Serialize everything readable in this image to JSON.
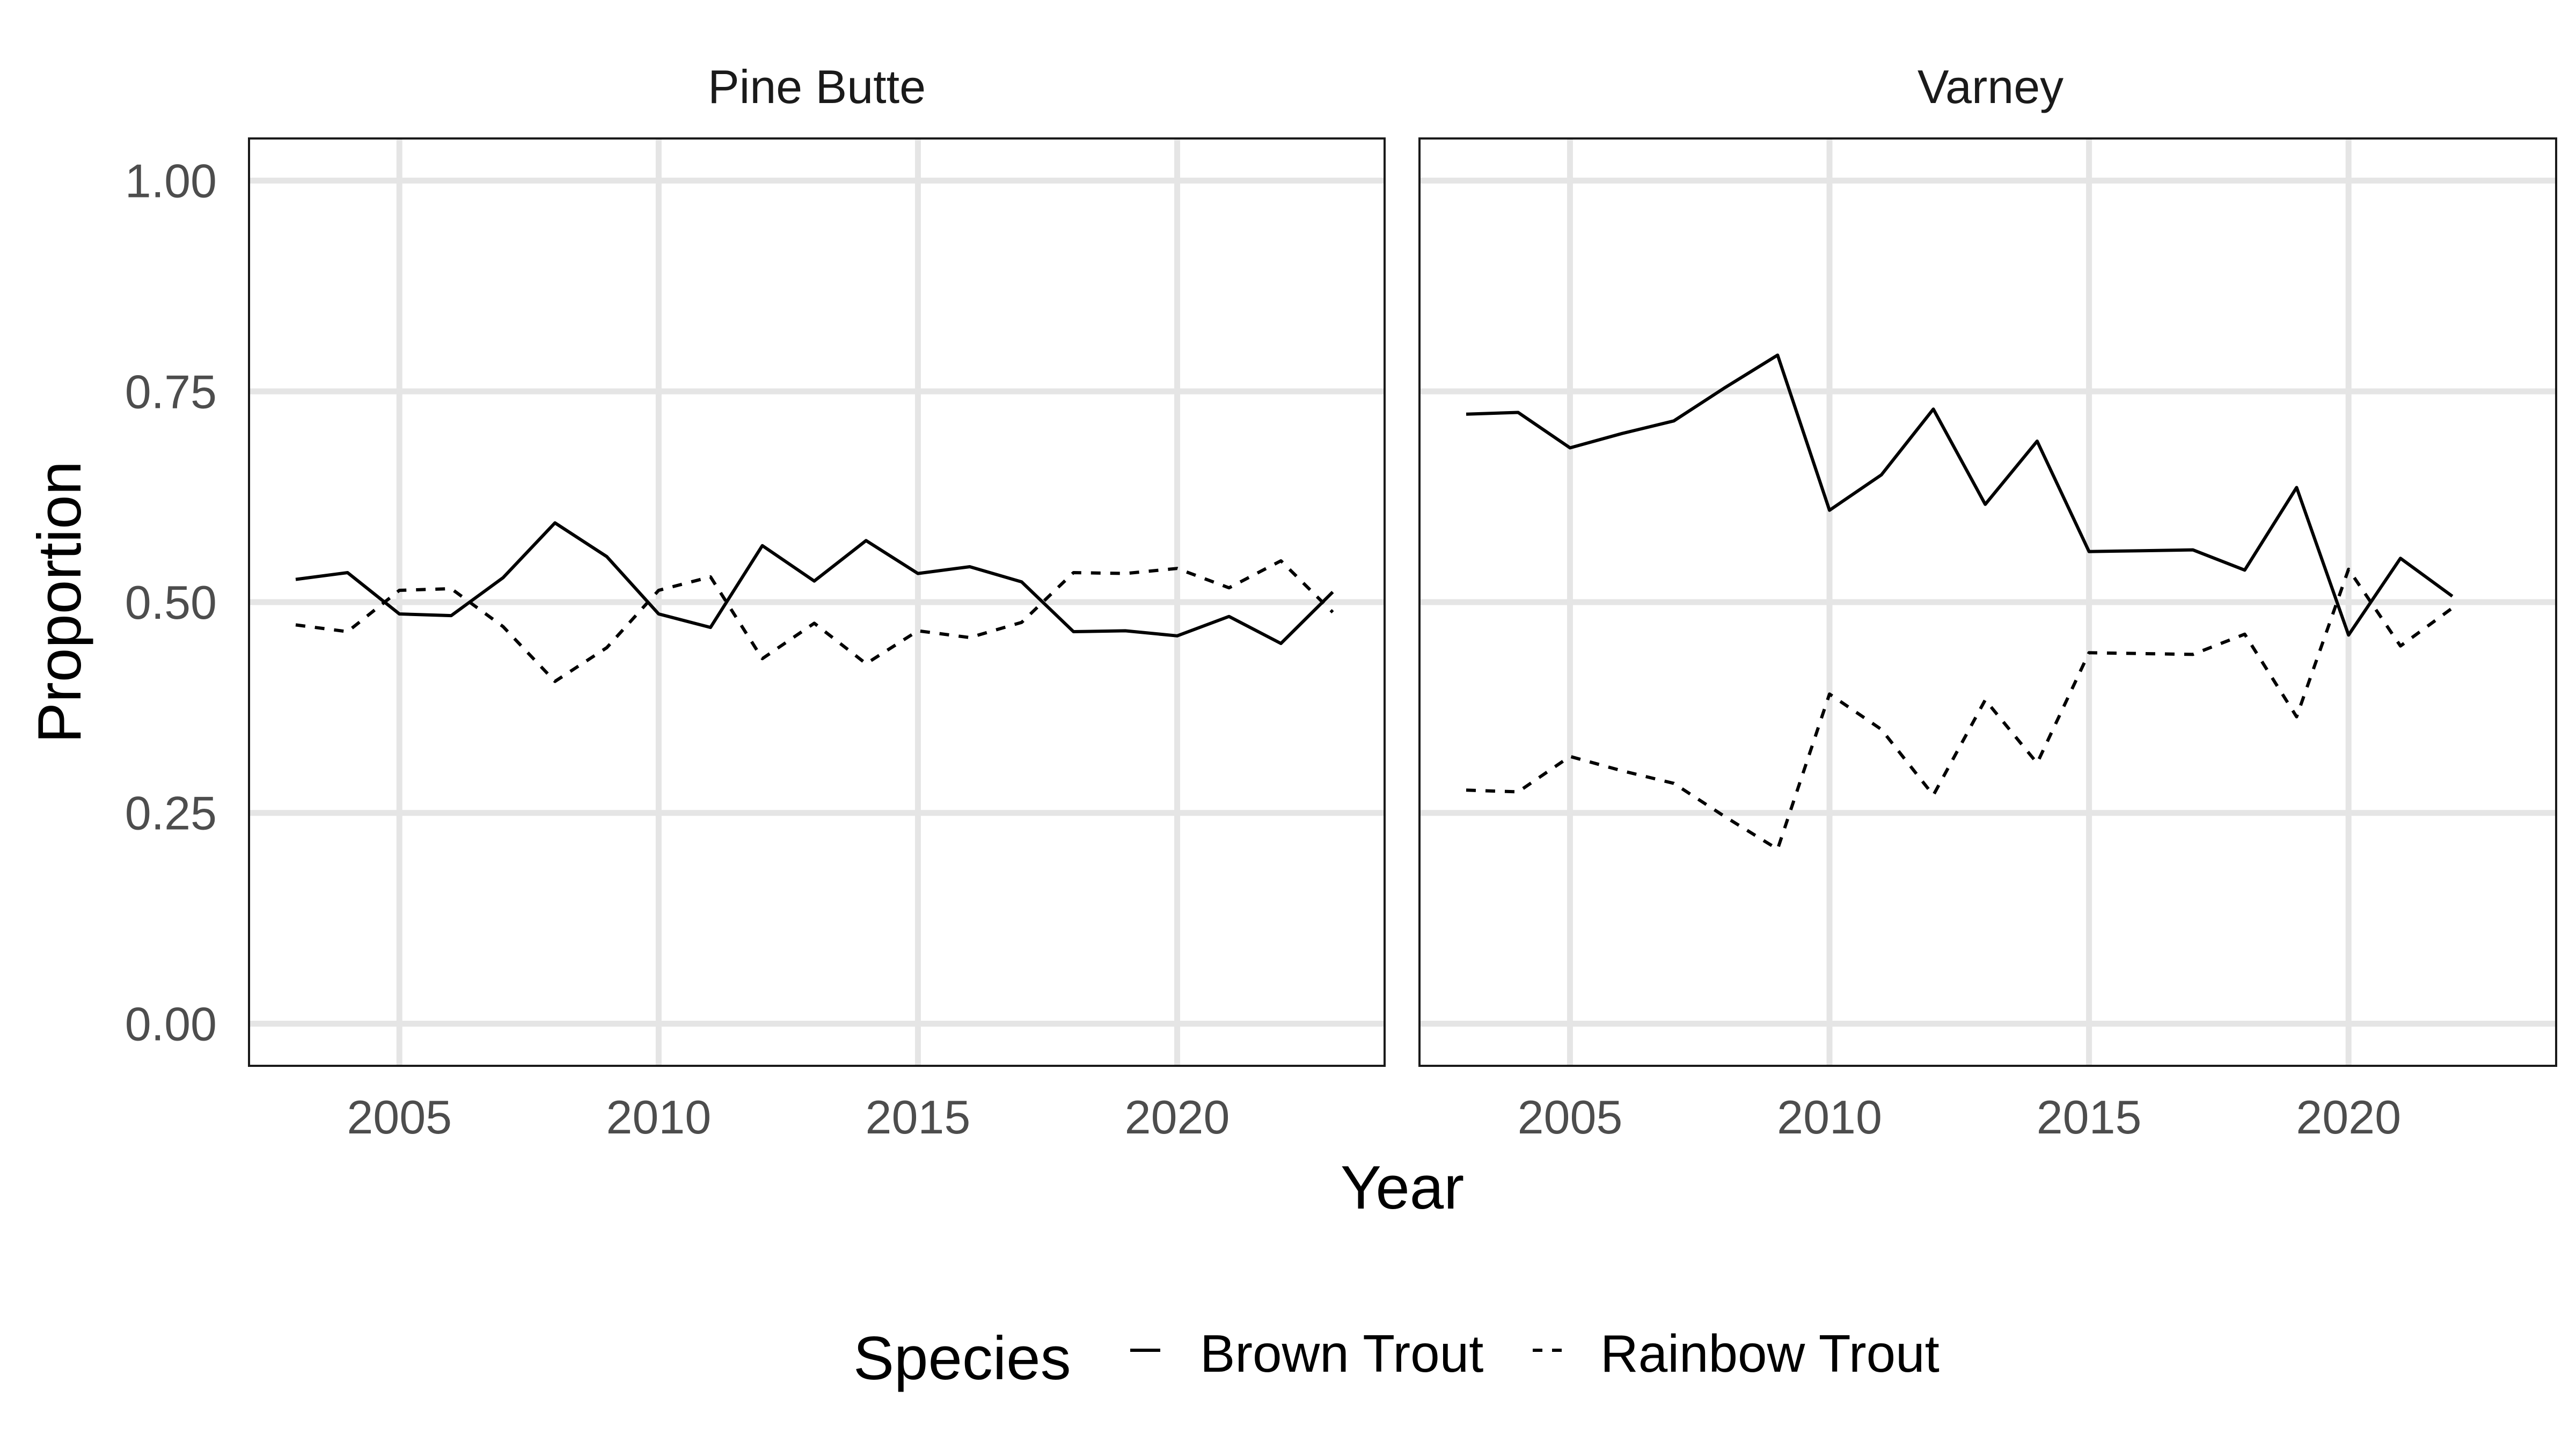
{
  "chart_data": {
    "type": "line",
    "facets": [
      "Pine Butte",
      "Varney"
    ],
    "xlabel": "Year",
    "ylabel": "Proportion",
    "xlim": [
      2002.1,
      2024.0
    ],
    "ylim": [
      -0.05,
      1.05
    ],
    "xticks": [
      2005,
      2010,
      2015,
      2020
    ],
    "xtick_labels": [
      "2005",
      "2010",
      "2015",
      "2020"
    ],
    "yticks": [
      0.0,
      0.25,
      0.5,
      0.75,
      1.0
    ],
    "ytick_labels": [
      "0.00",
      "0.25",
      "0.50",
      "0.75",
      "1.00"
    ],
    "grid": true,
    "legend": {
      "title": "Species",
      "placement": "bottom",
      "entries": [
        {
          "label": "Brown Trout",
          "linetype": "solid"
        },
        {
          "label": "Rainbow Trout",
          "linetype": "dashed"
        }
      ]
    },
    "panels": [
      {
        "title": "Pine Butte",
        "series": [
          {
            "name": "Brown Trout",
            "linetype": "solid",
            "x": [
              2003,
              2004,
              2005,
              2006,
              2007,
              2008,
              2009,
              2010,
              2011,
              2012,
              2013,
              2014,
              2015,
              2016,
              2017,
              2018,
              2019,
              2020,
              2021,
              2022,
              2023
            ],
            "y": [
              0.527,
              0.535,
              0.486,
              0.484,
              0.529,
              0.594,
              0.554,
              0.486,
              0.47,
              0.567,
              0.525,
              0.573,
              0.534,
              0.542,
              0.524,
              0.465,
              0.466,
              0.46,
              0.483,
              0.451,
              0.512
            ]
          },
          {
            "name": "Rainbow Trout",
            "linetype": "dashed",
            "x": [
              2003,
              2004,
              2005,
              2006,
              2007,
              2008,
              2009,
              2010,
              2011,
              2012,
              2013,
              2014,
              2015,
              2016,
              2017,
              2018,
              2019,
              2020,
              2021,
              2022,
              2023
            ],
            "y": [
              0.473,
              0.465,
              0.514,
              0.516,
              0.471,
              0.406,
              0.446,
              0.514,
              0.53,
              0.433,
              0.475,
              0.427,
              0.466,
              0.458,
              0.476,
              0.535,
              0.534,
              0.54,
              0.517,
              0.549,
              0.488
            ]
          }
        ]
      },
      {
        "title": "Varney",
        "series": [
          {
            "name": "Brown Trout",
            "linetype": "solid",
            "x": [
              2003,
              2004,
              2005,
              2006,
              2007,
              2008,
              2009,
              2010,
              2011,
              2012,
              2013,
              2014,
              2015,
              2016,
              2017,
              2018,
              2019,
              2020,
              2021,
              2022
            ],
            "y": [
              0.723,
              0.725,
              0.683,
              0.7,
              0.715,
              0.755,
              0.793,
              0.609,
              0.651,
              0.729,
              0.616,
              0.691,
              0.56,
              0.561,
              0.562,
              0.538,
              0.636,
              0.461,
              0.552,
              0.507
            ]
          },
          {
            "name": "Rainbow Trout",
            "linetype": "dashed",
            "x": [
              2003,
              2004,
              2005,
              2006,
              2007,
              2008,
              2009,
              2010,
              2011,
              2012,
              2013,
              2014,
              2015,
              2016,
              2017,
              2018,
              2019,
              2020,
              2021,
              2022
            ],
            "y": [
              0.277,
              0.275,
              0.317,
              0.3,
              0.285,
              0.245,
              0.207,
              0.391,
              0.349,
              0.271,
              0.384,
              0.309,
              0.44,
              0.439,
              0.438,
              0.462,
              0.364,
              0.539,
              0.448,
              0.493
            ]
          }
        ]
      }
    ]
  }
}
